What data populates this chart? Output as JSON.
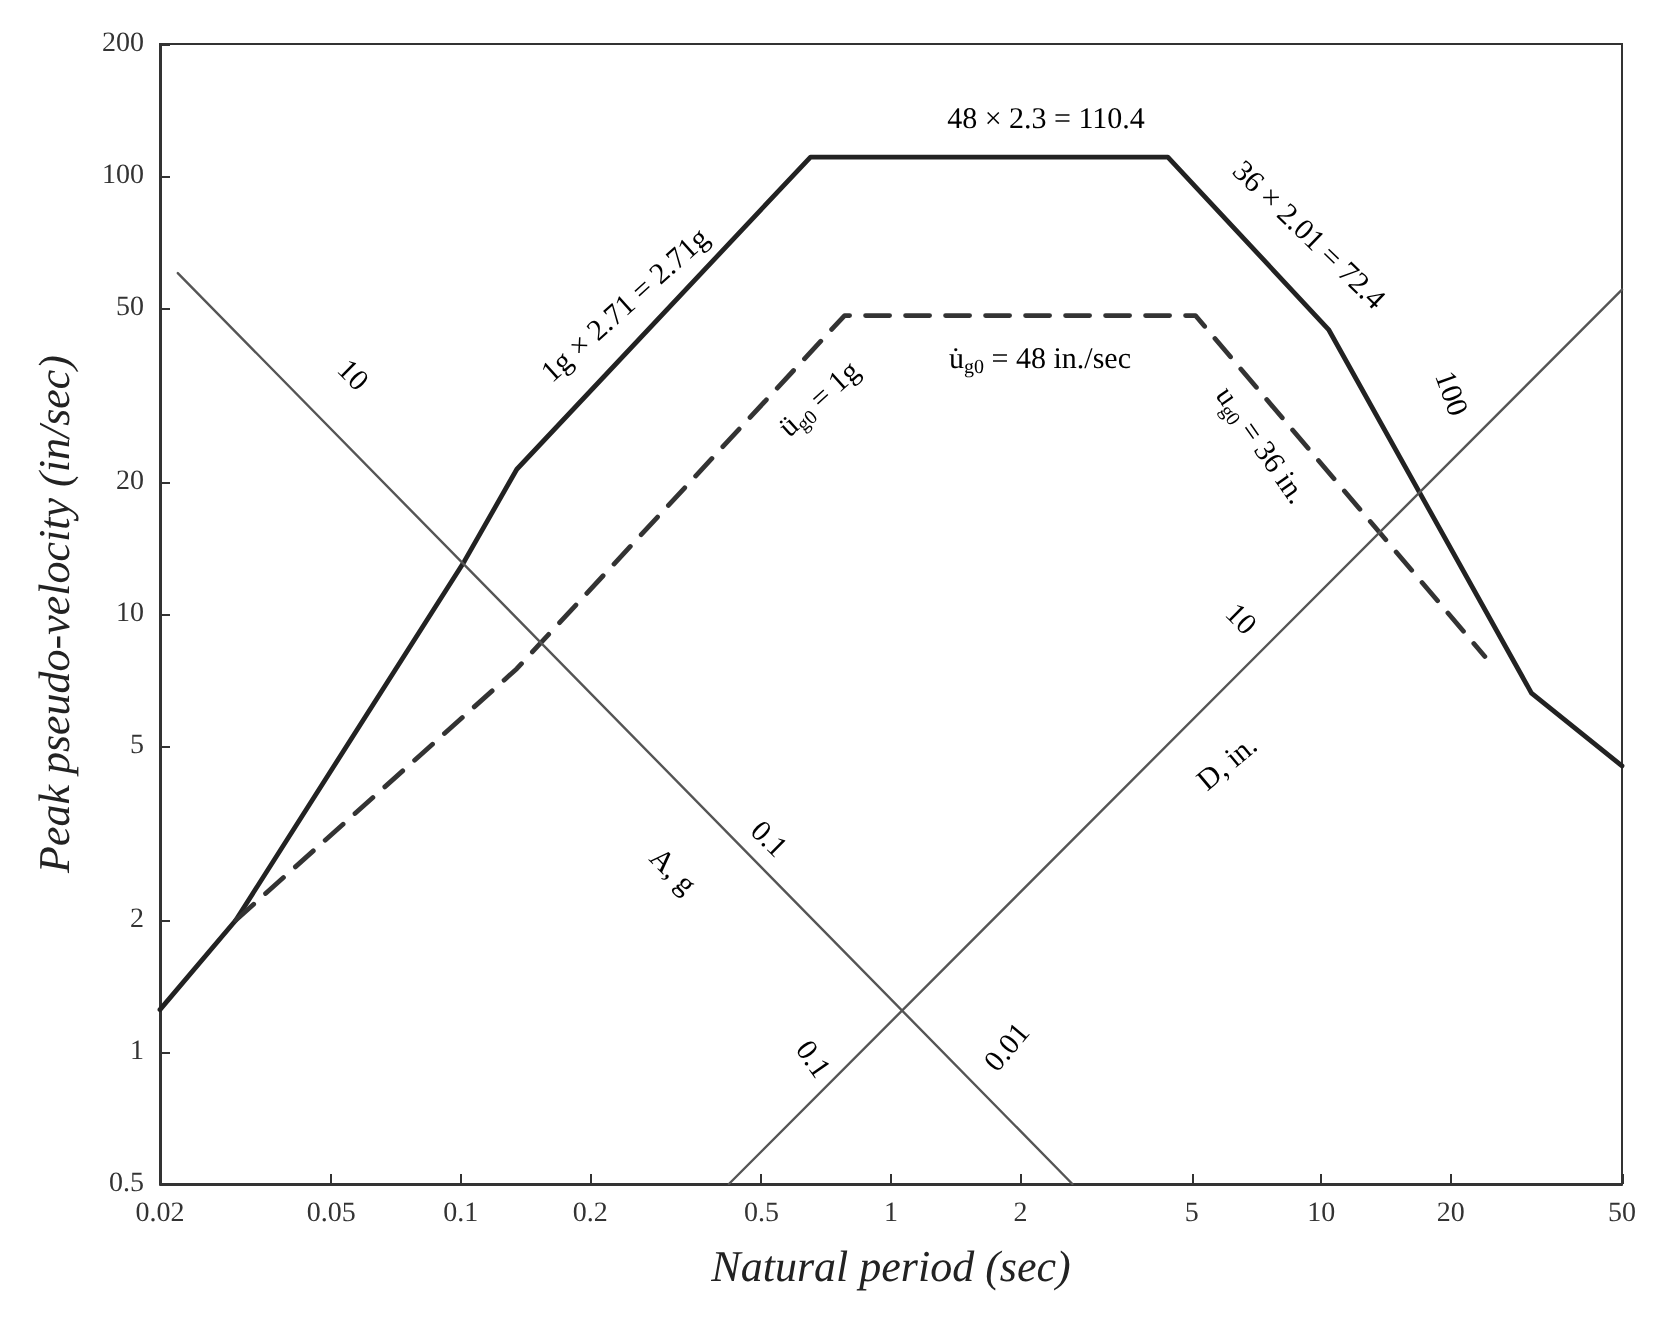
{
  "chart_data": {
    "type": "line",
    "xlabel": "Natural period (sec)",
    "ylabel": "Peak pseudo-velocity (in/sec)",
    "log": "xy",
    "marker": "none",
    "xlim": [
      0.02,
      50
    ],
    "xticks": [
      0.02,
      0.05,
      0.1,
      0.2,
      0.5,
      1,
      2,
      5,
      10,
      20,
      50
    ],
    "ylim": [
      0.5,
      200
    ],
    "yticks": [
      0.5,
      1,
      2,
      5,
      10,
      20,
      50,
      100,
      200
    ],
    "series": [
      {
        "color": "#222222",
        "line_style": "solid",
        "x": [
          0.02,
          0.03,
          0.102,
          0.135,
          0.65,
          4.4,
          10.4,
          30.8,
          50
        ],
        "values": [
          1.25,
          2,
          13.2,
          21.4,
          110.4,
          110.4,
          44.6,
          6.6,
          4.5
        ]
      },
      {
        "color": "#333333",
        "line_style": "dashed",
        "x": [
          0.03,
          0.135,
          0.78,
          5.1,
          24
        ],
        "values": [
          2,
          7.5,
          48,
          48,
          8
        ]
      },
      {
        "color": "#555555",
        "line_style": "solid",
        "x": [
          0.022,
          2.64
        ],
        "values": [
          60,
          0.5
        ]
      },
      {
        "color": "#555555",
        "line_style": "solid",
        "x": [
          0.42,
          50
        ],
        "values": [
          0.5,
          55
        ]
      }
    ],
    "annotations": [
      "48 × 2.3 = 110.4",
      "36 × 2.01 = 72.4",
      "1g × 2.71 = 2.71g",
      "ü$_{g0}$ = 1g",
      "u̇$_{g0}$ = 48 in./sec",
      "u$_{g0}$ = 36 in.",
      "10",
      "0.1",
      "A, g",
      "0.01",
      "0.1",
      "10",
      "100",
      "D, in."
    ]
  }
}
